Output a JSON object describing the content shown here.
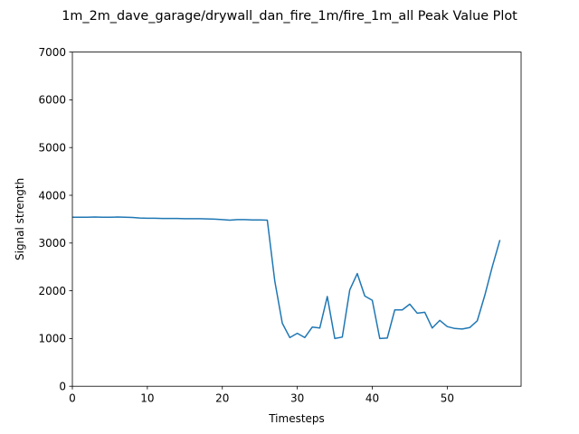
{
  "chart_data": {
    "type": "line",
    "title": "1m_2m_dave_garage/drywall_dan_fire_1m/fire_1m_all Peak Value Plot",
    "xlabel": "Timesteps",
    "ylabel": "Signal strength",
    "xlim": [
      0,
      59.85
    ],
    "ylim": [
      0,
      7000
    ],
    "xticks": [
      0,
      10,
      20,
      30,
      40,
      50
    ],
    "yticks": [
      0,
      1000,
      2000,
      3000,
      4000,
      5000,
      6000,
      7000
    ],
    "grid": false,
    "legend": "none",
    "series": [
      {
        "color": "#1f77b4",
        "x": [
          0,
          1,
          2,
          3,
          4,
          5,
          6,
          7,
          8,
          9,
          10,
          11,
          12,
          13,
          14,
          15,
          16,
          17,
          18,
          19,
          20,
          21,
          22,
          23,
          24,
          25,
          26,
          27,
          28,
          29,
          30,
          31,
          32,
          33,
          34,
          35,
          36,
          37,
          38,
          39,
          40,
          41,
          42,
          43,
          44,
          45,
          46,
          47,
          48,
          49,
          50,
          51,
          52,
          53,
          54,
          55,
          56,
          57
        ],
        "y": [
          3540,
          3540,
          3540,
          3545,
          3540,
          3540,
          3545,
          3540,
          3535,
          3525,
          3520,
          3520,
          3515,
          3515,
          3515,
          3510,
          3510,
          3510,
          3505,
          3500,
          3490,
          3480,
          3490,
          3490,
          3485,
          3485,
          3480,
          2200,
          1320,
          1020,
          1110,
          1020,
          1240,
          1220,
          1880,
          1000,
          1030,
          2020,
          2360,
          1890,
          1800,
          1000,
          1010,
          1600,
          1600,
          1720,
          1530,
          1550,
          1220,
          1380,
          1250,
          1210,
          1200,
          1230,
          1370,
          1900,
          2500,
          3050
        ]
      }
    ]
  }
}
